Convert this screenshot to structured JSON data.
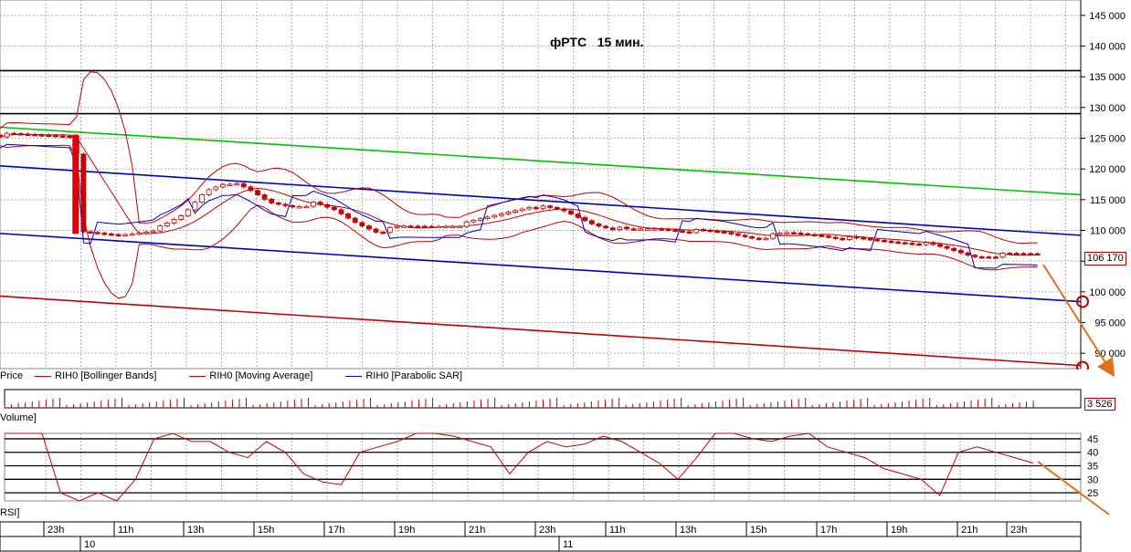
{
  "chart_title": "фРТС   15 мин.",
  "price_pane": {
    "label": "Price",
    "legend": [
      {
        "name": "RIH0 [Bollinger Bands]",
        "color": "#c00000"
      },
      {
        "name": "RIH0 [Moving Average]",
        "color": "#c00000"
      },
      {
        "name": "RIH0 [Parabolic SAR]",
        "color": "#0000c0"
      }
    ],
    "last_price_label": "106 170",
    "y_ticks": [
      "145 000",
      "140 000",
      "135 000",
      "130 000",
      "125 000",
      "120 000",
      "115 000",
      "110 000",
      "105 000",
      "100 000",
      "95 000",
      "90 000"
    ]
  },
  "volume_pane": {
    "label": "Volume]",
    "last_value_label": "3 526"
  },
  "rsi_pane": {
    "label": "RSI]",
    "y_ticks": [
      "45",
      "40",
      "35",
      "30",
      "25"
    ]
  },
  "time_axis": {
    "hour_labels": [
      "23h",
      "11h",
      "13h",
      "15h",
      "17h",
      "19h",
      "21h",
      "23h",
      "11h",
      "13h",
      "15h",
      "17h",
      "19h",
      "21h",
      "23h"
    ],
    "day_labels": [
      "10",
      "11"
    ]
  },
  "chart_data": {
    "type": "candlestick",
    "title": "фРТС   15 мин.",
    "ylim": [
      87500,
      147500
    ],
    "y_ticks": [
      90000,
      95000,
      100000,
      105000,
      110000,
      115000,
      120000,
      125000,
      130000,
      135000,
      140000,
      145000
    ],
    "horizontal_levels": [
      136000,
      129000
    ],
    "trend_lines": [
      {
        "color": "#00c000",
        "from": [
          0,
          126800
        ],
        "to": [
          1,
          115800
        ]
      },
      {
        "color": "#0000c0",
        "from": [
          0,
          120500
        ],
        "to": [
          1,
          109200
        ]
      },
      {
        "color": "#0000c0",
        "from": [
          0,
          109500
        ],
        "to": [
          1,
          98400
        ]
      },
      {
        "color": "#c00000",
        "from": [
          0,
          99300
        ],
        "to": [
          1,
          88000
        ]
      }
    ],
    "price_path": [
      [
        0.0,
        125500
      ],
      [
        0.07,
        125500
      ],
      [
        0.075,
        109500
      ],
      [
        0.11,
        109200
      ],
      [
        0.13,
        109800
      ],
      [
        0.15,
        110500
      ],
      [
        0.17,
        112500
      ],
      [
        0.19,
        116500
      ],
      [
        0.21,
        118000
      ],
      [
        0.23,
        116500
      ],
      [
        0.25,
        114500
      ],
      [
        0.27,
        114000
      ],
      [
        0.29,
        114300
      ],
      [
        0.31,
        113200
      ],
      [
        0.33,
        111200
      ],
      [
        0.35,
        109800
      ],
      [
        0.37,
        110500
      ],
      [
        0.4,
        110700
      ],
      [
        0.43,
        111000
      ],
      [
        0.46,
        112500
      ],
      [
        0.49,
        114000
      ],
      [
        0.52,
        113200
      ],
      [
        0.55,
        111000
      ],
      [
        0.58,
        110000
      ],
      [
        0.61,
        110300
      ],
      [
        0.64,
        109900
      ],
      [
        0.67,
        109600
      ],
      [
        0.7,
        108800
      ],
      [
        0.73,
        109500
      ],
      [
        0.76,
        109200
      ],
      [
        0.79,
        108600
      ],
      [
        0.82,
        108200
      ],
      [
        0.85,
        108000
      ],
      [
        0.88,
        106800
      ],
      [
        0.9,
        105800
      ],
      [
        0.93,
        106000
      ],
      [
        0.96,
        106170
      ]
    ],
    "last_price": 106170,
    "volume_last": 3526,
    "rsi": {
      "ylim": [
        22,
        47
      ],
      "levels": [
        45,
        40,
        35,
        30,
        25
      ],
      "values": [
        48,
        48,
        48,
        25,
        22,
        25,
        22,
        30,
        45,
        48,
        44,
        44,
        40,
        38,
        44,
        40,
        32,
        29,
        28,
        40,
        42,
        44,
        47,
        48,
        46,
        44,
        42,
        32,
        40,
        44,
        42,
        43,
        46,
        44,
        40,
        36,
        30,
        38,
        48,
        48,
        45,
        44,
        46,
        48,
        42,
        40,
        38,
        34,
        32,
        30,
        24,
        40,
        42,
        40,
        38,
        36
      ]
    }
  }
}
